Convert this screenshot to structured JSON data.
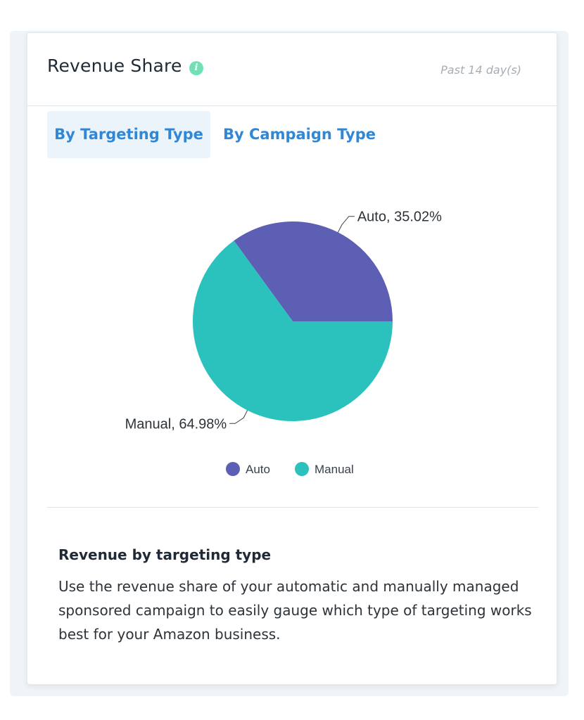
{
  "card": {
    "title": "Revenue Share",
    "info_icon_glyph": "i",
    "period": "Past 14 day(s)"
  },
  "tabs": [
    {
      "label": "By Targeting Type",
      "active": true
    },
    {
      "label": "By Campaign Type",
      "active": false
    }
  ],
  "chart_data": {
    "type": "pie",
    "slices": [
      {
        "label": "Auto",
        "value": 35.02,
        "data_label": "Auto, 35.02%",
        "color": "#5d5fb5"
      },
      {
        "label": "Manual",
        "value": 64.98,
        "data_label": "Manual, 64.98%",
        "color": "#2bc2be"
      }
    ],
    "legend": [
      "Auto",
      "Manual"
    ],
    "legend_position": "bottom"
  },
  "description": {
    "title": "Revenue by targeting type",
    "text": "Use the revenue share of your automatic and manually managed sponsored campaign to easily gauge which type of targeting works best for your Amazon business."
  }
}
